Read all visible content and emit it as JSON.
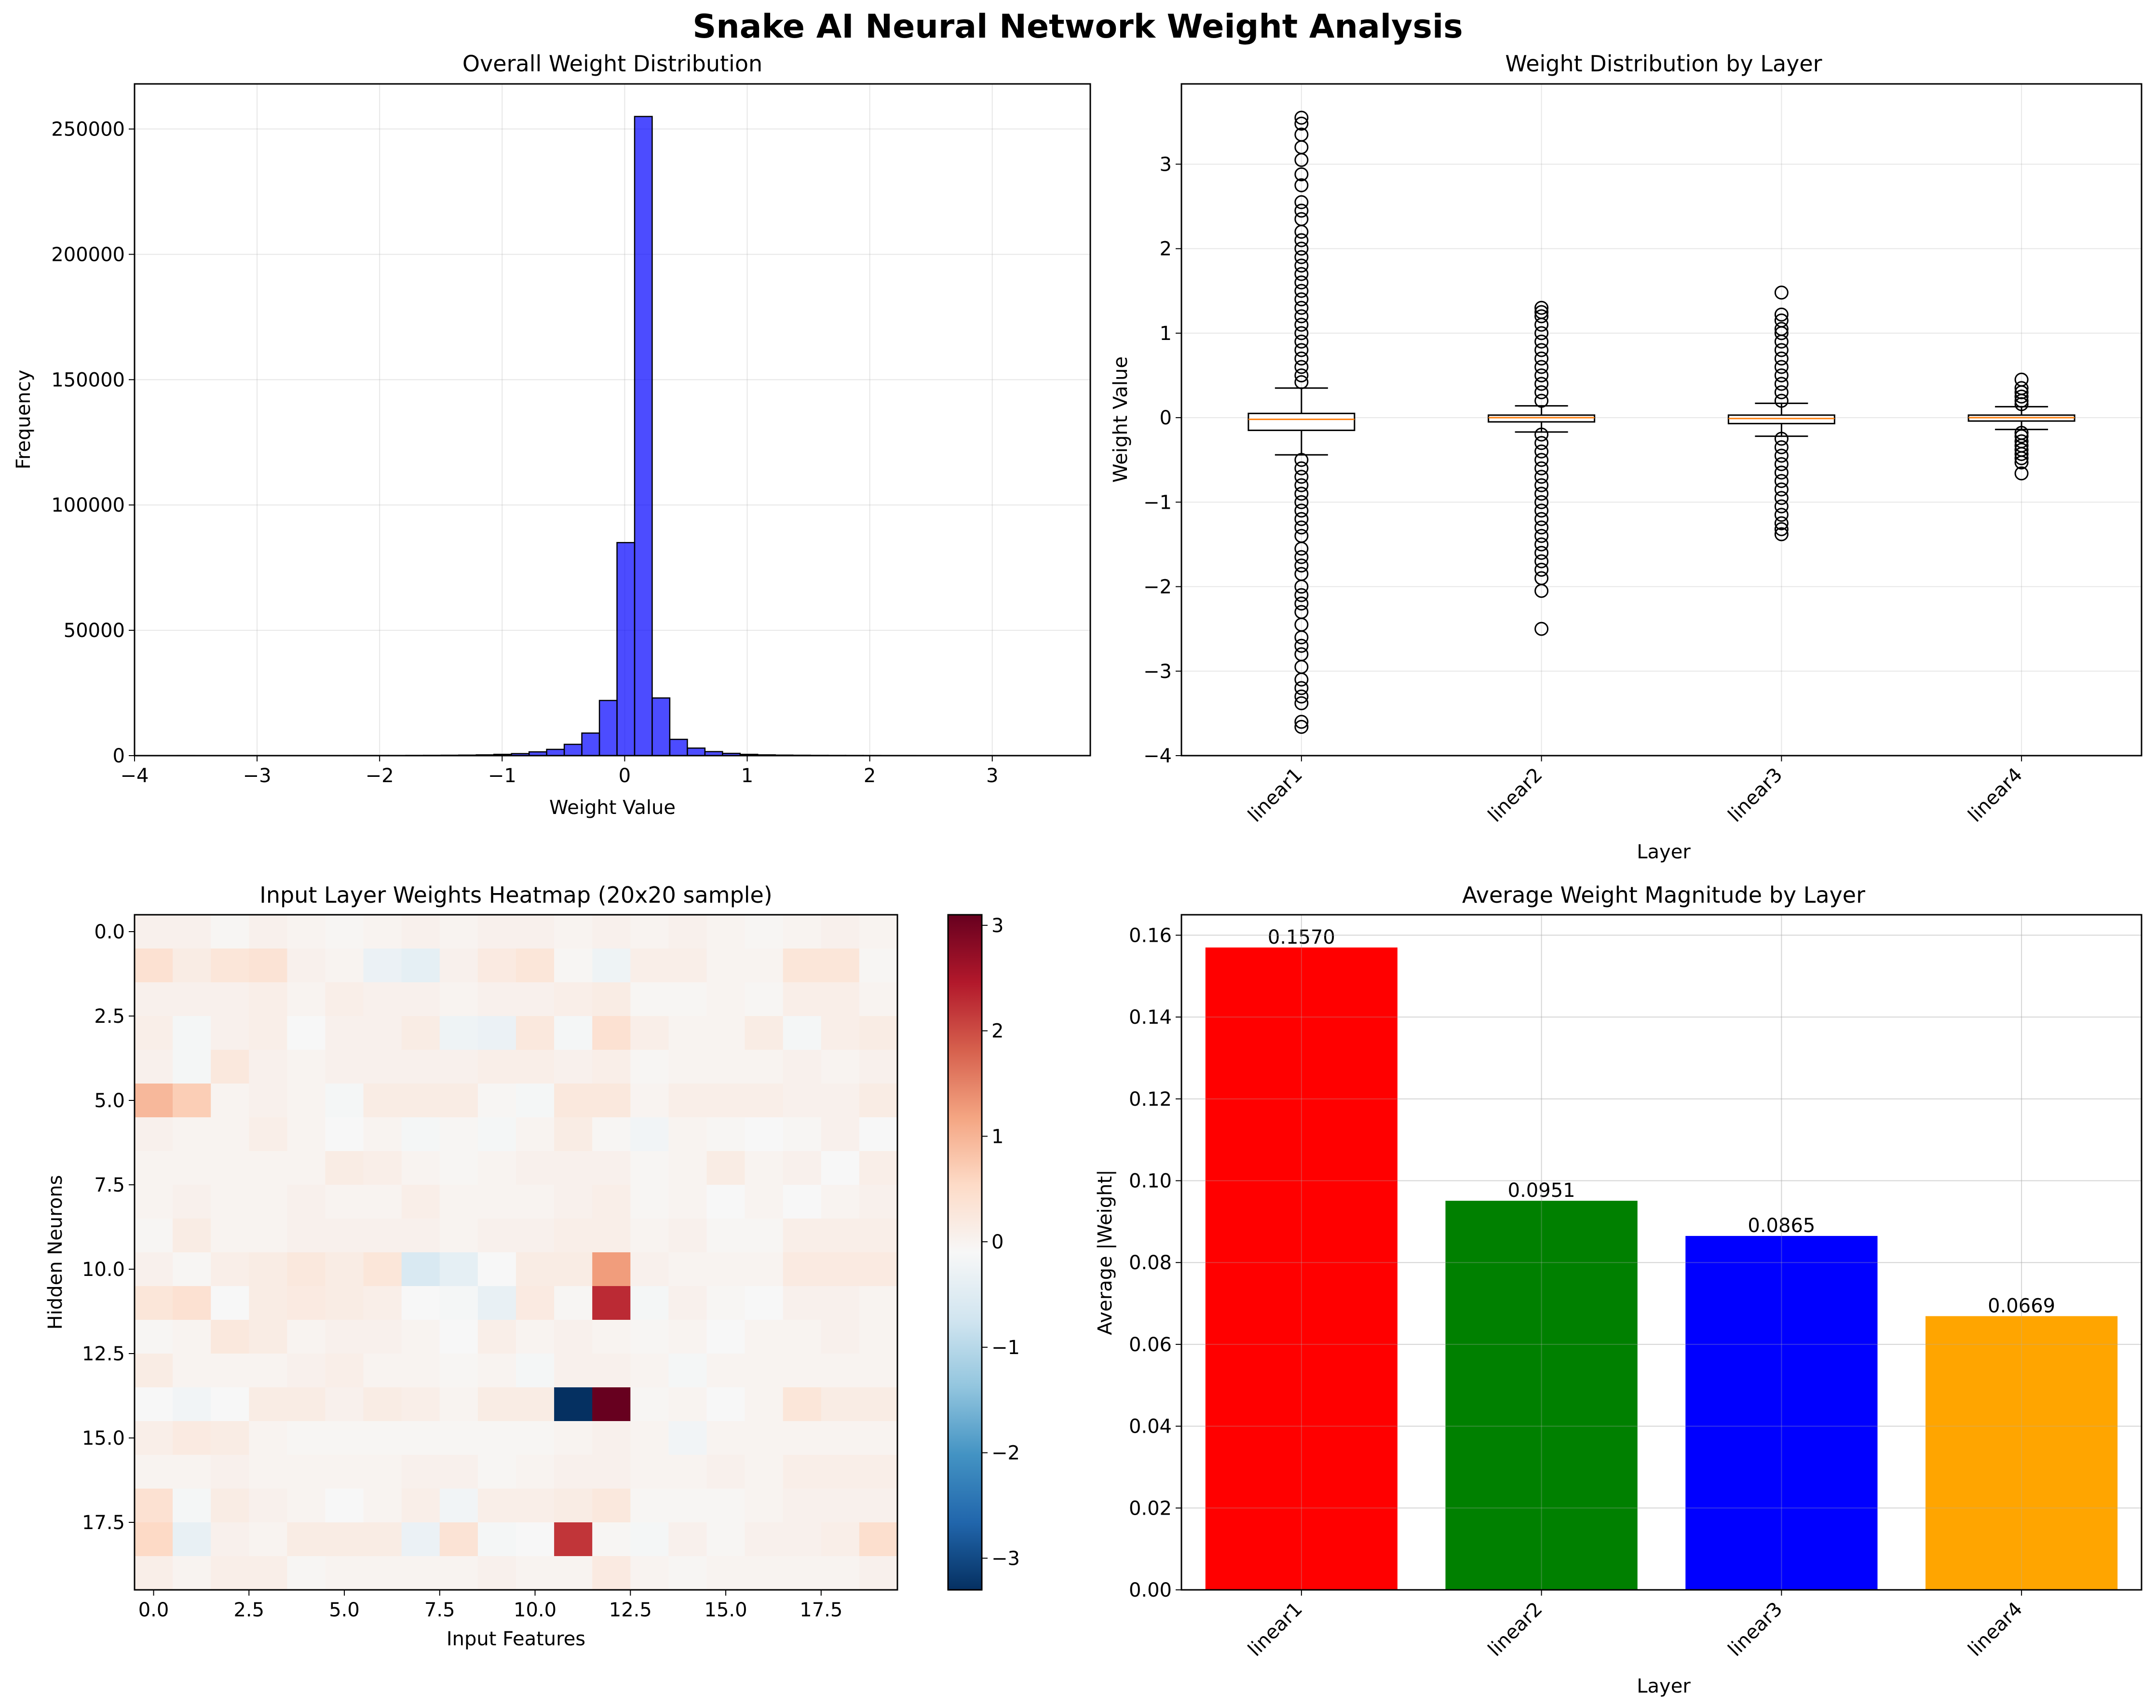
{
  "suptitle": "Snake AI Neural Network Weight Analysis",
  "chart_data": [
    {
      "type": "bar",
      "subtype": "histogram",
      "title": "Overall Weight Distribution",
      "xlabel": "Weight Value",
      "ylabel": "Frequency",
      "xlim": [
        -4.0,
        3.8
      ],
      "ylim": [
        0,
        268000
      ],
      "xticks": [
        -4,
        -3,
        -2,
        -1,
        0,
        1,
        2,
        3
      ],
      "yticks": [
        0,
        50000,
        100000,
        150000,
        200000,
        250000
      ],
      "grid": true,
      "color": "#0000ff",
      "bin_start": -3.65,
      "bin_width": 0.1435,
      "counts": [
        50,
        20,
        20,
        20,
        20,
        20,
        30,
        30,
        40,
        40,
        50,
        60,
        60,
        80,
        100,
        150,
        200,
        300,
        500,
        800,
        1500,
        2500,
        4500,
        9000,
        22000,
        85000,
        255000,
        23000,
        6500,
        3000,
        1600,
        900,
        500,
        300,
        200,
        150,
        100,
        80,
        70,
        60,
        50,
        50,
        40,
        40,
        30,
        30,
        20,
        20,
        20,
        20
      ]
    },
    {
      "type": "box",
      "title": "Weight Distribution by Layer",
      "xlabel": "Layer",
      "ylabel": "Weight Value",
      "categories": [
        "linear1",
        "linear2",
        "linear3",
        "linear4"
      ],
      "ylim": [
        -4,
        3.95
      ],
      "yticks": [
        -4,
        -3,
        -2,
        -1,
        0,
        1,
        2,
        3
      ],
      "grid": true,
      "boxes": [
        {
          "q1": -0.15,
          "median": -0.02,
          "q3": 0.05,
          "whisker_low": -0.44,
          "whisker_high": 0.35,
          "outliers_high": [
            0.42,
            0.5,
            0.6,
            0.7,
            0.8,
            0.9,
            1.0,
            1.1,
            1.2,
            1.3,
            1.4,
            1.5,
            1.6,
            1.7,
            1.8,
            1.9,
            2.0,
            2.1,
            2.2,
            2.35,
            2.45,
            2.55,
            2.75,
            2.88,
            3.05,
            3.2,
            3.35,
            3.48,
            3.55
          ],
          "outliers_low": [
            -0.5,
            -0.6,
            -0.7,
            -0.8,
            -0.9,
            -1.0,
            -1.1,
            -1.2,
            -1.3,
            -1.4,
            -1.55,
            -1.65,
            -1.75,
            -1.85,
            -2.0,
            -2.1,
            -2.2,
            -2.3,
            -2.45,
            -2.6,
            -2.7,
            -2.8,
            -2.95,
            -3.1,
            -3.2,
            -3.3,
            -3.38,
            -3.6,
            -3.66
          ]
        },
        {
          "q1": -0.05,
          "median": 0.0,
          "q3": 0.03,
          "whisker_low": -0.17,
          "whisker_high": 0.14,
          "outliers_high": [
            0.2,
            0.3,
            0.4,
            0.5,
            0.6,
            0.7,
            0.8,
            0.9,
            1.0,
            1.1,
            1.2,
            1.25,
            1.3
          ],
          "outliers_low": [
            -0.2,
            -0.3,
            -0.4,
            -0.5,
            -0.6,
            -0.7,
            -0.8,
            -0.9,
            -1.0,
            -1.1,
            -1.2,
            -1.3,
            -1.4,
            -1.5,
            -1.6,
            -1.7,
            -1.8,
            -1.9,
            -2.05,
            -2.5
          ]
        },
        {
          "q1": -0.07,
          "median": -0.01,
          "q3": 0.03,
          "whisker_low": -0.22,
          "whisker_high": 0.17,
          "outliers_high": [
            0.2,
            0.3,
            0.4,
            0.5,
            0.6,
            0.7,
            0.8,
            0.9,
            1.0,
            1.05,
            1.15,
            1.22,
            1.48
          ],
          "outliers_low": [
            -0.25,
            -0.35,
            -0.45,
            -0.55,
            -0.65,
            -0.75,
            -0.85,
            -0.95,
            -1.05,
            -1.15,
            -1.25,
            -1.32,
            -1.38
          ]
        },
        {
          "q1": -0.04,
          "median": 0.0,
          "q3": 0.03,
          "whisker_low": -0.14,
          "whisker_high": 0.13,
          "outliers_high": [
            0.16,
            0.2,
            0.25,
            0.3,
            0.35,
            0.45
          ],
          "outliers_low": [
            -0.18,
            -0.22,
            -0.28,
            -0.33,
            -0.38,
            -0.43,
            -0.48,
            -0.53,
            -0.66
          ]
        }
      ]
    },
    {
      "type": "heatmap",
      "title": "Input Layer Weights Heatmap (20x20 sample)",
      "xlabel": "Input Features",
      "ylabel": "Hidden Neurons",
      "rows": 20,
      "cols": 20,
      "colormap": "RdBu_r",
      "vmin": -3.3,
      "vmax": 3.1,
      "xticks": [
        0.0,
        2.5,
        5.0,
        7.5,
        10.0,
        12.5,
        15.0,
        17.5
      ],
      "yticks": [
        0.0,
        2.5,
        5.0,
        7.5,
        10.0,
        12.5,
        15.0,
        17.5
      ],
      "colorbar_ticks": [
        -3,
        -2,
        -1,
        0,
        1,
        2,
        3
      ],
      "matrix": [
        [
          0.05,
          0.05,
          -0.05,
          0.05,
          0.0,
          -0.05,
          0.0,
          0.05,
          0.0,
          0.05,
          0.05,
          0.0,
          0.05,
          0.0,
          0.05,
          0.0,
          -0.05,
          0.0,
          0.05,
          0.0
        ],
        [
          0.4,
          0.15,
          0.3,
          0.35,
          0.05,
          0.0,
          -0.3,
          -0.4,
          0.05,
          0.2,
          0.3,
          -0.05,
          -0.25,
          0.1,
          0.1,
          0.0,
          0.0,
          0.3,
          0.3,
          -0.05
        ],
        [
          0.05,
          0.05,
          0.05,
          0.1,
          0.0,
          0.1,
          0.05,
          0.05,
          0.0,
          0.05,
          0.05,
          0.1,
          0.15,
          -0.05,
          -0.05,
          0.0,
          -0.05,
          0.1,
          0.1,
          0.0
        ],
        [
          0.1,
          -0.15,
          0.05,
          0.1,
          -0.1,
          0.05,
          0.05,
          0.15,
          -0.25,
          -0.3,
          0.25,
          -0.15,
          0.4,
          0.1,
          0.0,
          0.0,
          0.15,
          -0.15,
          0.1,
          0.15
        ],
        [
          0.05,
          -0.15,
          0.25,
          0.05,
          0.0,
          0.05,
          0.05,
          0.05,
          0.05,
          0.1,
          0.1,
          0.05,
          0.1,
          -0.05,
          0.0,
          0.0,
          0.0,
          0.05,
          0.0,
          0.05
        ],
        [
          0.95,
          0.7,
          0.0,
          0.05,
          0.0,
          -0.15,
          0.15,
          0.15,
          0.15,
          -0.05,
          -0.15,
          0.25,
          0.25,
          0.0,
          0.1,
          0.1,
          0.1,
          0.05,
          0.05,
          0.15
        ],
        [
          0.05,
          0.0,
          0.0,
          0.1,
          0.0,
          -0.1,
          0.0,
          -0.15,
          -0.05,
          -0.15,
          0.0,
          0.15,
          -0.05,
          -0.2,
          0.0,
          -0.05,
          -0.1,
          -0.05,
          0.05,
          -0.1
        ],
        [
          0.0,
          0.0,
          0.0,
          0.0,
          0.0,
          0.15,
          0.1,
          0.0,
          -0.05,
          0.0,
          0.05,
          0.05,
          0.05,
          -0.05,
          0.0,
          0.15,
          0.0,
          0.05,
          -0.1,
          0.1
        ],
        [
          0.0,
          0.05,
          0.0,
          0.0,
          0.05,
          0.0,
          0.0,
          0.1,
          0.0,
          0.0,
          0.0,
          0.05,
          0.1,
          -0.05,
          0.0,
          -0.1,
          0.0,
          -0.1,
          0.0,
          0.05
        ],
        [
          -0.05,
          0.15,
          0.0,
          0.0,
          0.05,
          0.05,
          0.05,
          0.05,
          0.0,
          0.05,
          0.05,
          0.1,
          0.1,
          0.0,
          0.05,
          -0.05,
          -0.05,
          0.1,
          0.1,
          0.1
        ],
        [
          0.05,
          -0.05,
          0.1,
          0.15,
          0.25,
          0.15,
          0.3,
          -0.6,
          -0.4,
          -0.1,
          0.15,
          0.15,
          1.25,
          0.05,
          0.0,
          0.0,
          0.0,
          0.2,
          0.2,
          0.2
        ],
        [
          0.3,
          0.4,
          -0.1,
          0.15,
          0.2,
          0.15,
          0.1,
          -0.1,
          -0.15,
          -0.35,
          0.2,
          -0.05,
          2.3,
          -0.15,
          0.05,
          -0.05,
          -0.1,
          0.05,
          0.05,
          0.0
        ],
        [
          -0.05,
          0.0,
          0.25,
          0.15,
          0.0,
          0.05,
          0.05,
          0.0,
          -0.1,
          0.1,
          0.0,
          0.05,
          0.0,
          -0.05,
          0.0,
          -0.1,
          0.0,
          0.0,
          0.05,
          0.0
        ],
        [
          0.15,
          0.0,
          0.0,
          0.0,
          0.05,
          0.1,
          0.0,
          0.0,
          -0.05,
          0.0,
          -0.15,
          0.05,
          0.05,
          0.0,
          -0.15,
          0.0,
          0.0,
          0.0,
          0.0,
          0.0
        ],
        [
          -0.1,
          -0.2,
          -0.1,
          0.15,
          0.15,
          0.05,
          0.15,
          0.1,
          0.0,
          0.15,
          0.15,
          -3.3,
          3.1,
          -0.05,
          0.0,
          -0.1,
          0.0,
          0.3,
          0.15,
          0.15
        ],
        [
          0.1,
          0.2,
          0.15,
          0.0,
          -0.05,
          -0.05,
          -0.05,
          -0.05,
          -0.05,
          -0.05,
          -0.05,
          0.0,
          0.05,
          0.0,
          -0.2,
          0.0,
          0.0,
          0.0,
          0.0,
          0.0
        ],
        [
          0.0,
          0.0,
          0.05,
          0.0,
          0.0,
          0.0,
          0.0,
          0.05,
          0.05,
          -0.05,
          0.0,
          0.05,
          0.05,
          0.0,
          0.0,
          0.05,
          0.0,
          0.1,
          0.1,
          0.1
        ],
        [
          0.4,
          -0.15,
          0.15,
          0.05,
          0.0,
          -0.1,
          0.0,
          0.1,
          -0.2,
          0.1,
          0.1,
          0.15,
          0.25,
          -0.05,
          -0.05,
          -0.05,
          0.0,
          0.05,
          0.05,
          0.05
        ],
        [
          0.55,
          -0.35,
          0.05,
          0.0,
          0.15,
          0.15,
          0.15,
          -0.3,
          0.35,
          -0.15,
          -0.1,
          2.2,
          -0.05,
          -0.15,
          0.05,
          -0.05,
          0.05,
          0.05,
          0.1,
          0.45
        ],
        [
          0.1,
          0.0,
          0.1,
          0.1,
          -0.05,
          0.0,
          0.0,
          0.0,
          0.0,
          0.05,
          0.0,
          0.0,
          0.2,
          0.0,
          -0.05,
          0.0,
          0.0,
          0.0,
          0.0,
          0.05
        ]
      ]
    },
    {
      "type": "bar",
      "title": "Average Weight Magnitude by Layer",
      "xlabel": "Layer",
      "ylabel": "Average |Weight|",
      "categories": [
        "linear1",
        "linear2",
        "linear3",
        "linear4"
      ],
      "values": [
        0.157,
        0.0951,
        0.0865,
        0.0669
      ],
      "value_labels": [
        "0.1570",
        "0.0951",
        "0.0865",
        "0.0669"
      ],
      "colors": [
        "#ff0000",
        "#008000",
        "#0000ff",
        "#ffa500"
      ],
      "ylim": [
        0,
        0.165
      ],
      "yticks": [
        0.0,
        0.02,
        0.04,
        0.06,
        0.08,
        0.1,
        0.12,
        0.14,
        0.16
      ],
      "ytick_format": 2,
      "grid": true
    }
  ]
}
